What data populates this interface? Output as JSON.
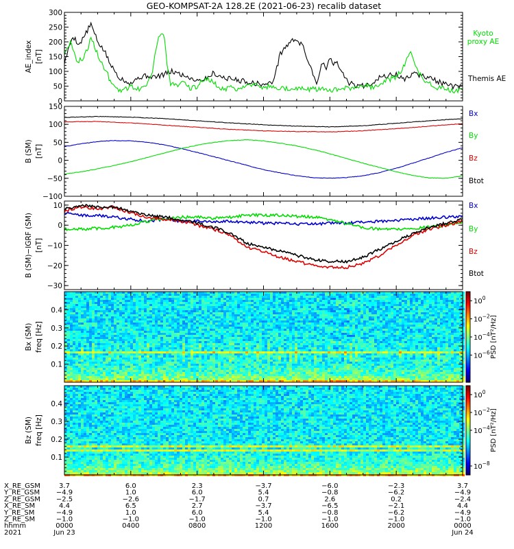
{
  "title": "GEO-KOMPSAT-2A 128.2E (2021-06-23) recalib dataset",
  "colors": {
    "black": "#000000",
    "blue": "#0000cc",
    "green": "#00dd00",
    "red": "#dd0000"
  },
  "chart_data": [
    {
      "type": "line",
      "id": "ae",
      "ylabel": "AE_index",
      "yunit": "[nT]",
      "ylim": [
        0,
        300
      ],
      "yticks": [
        0,
        50,
        100,
        150,
        200,
        250,
        300
      ],
      "ytick_labels": [
        "0",
        "50",
        "100",
        "150",
        "200",
        "250",
        "300"
      ],
      "x_hours": [
        0,
        24
      ],
      "series": [
        {
          "name": "Themis AE",
          "color": "#000000",
          "x": [
            0,
            0.5,
            0.9,
            1.3,
            1.6,
            2.0,
            2.4,
            2.8,
            3.3,
            3.6,
            4.0,
            4.5,
            5.0,
            5.5,
            6.0,
            6.5,
            7.0,
            7.5,
            8.0,
            8.5,
            9.0,
            9.5,
            10.0,
            10.5,
            11.0,
            11.5,
            12.0,
            12.5,
            12.8,
            13.0,
            13.3,
            13.6,
            14.0,
            14.4,
            14.8,
            15.2,
            15.6,
            15.8,
            16.0,
            16.2,
            16.4,
            16.6,
            16.8,
            17.0,
            17.2,
            17.4,
            17.6,
            17.8,
            18.0,
            18.5,
            19.0,
            19.5,
            20.0,
            20.5,
            21.0,
            21.5,
            22.0,
            22.5,
            23.0,
            23.5,
            24.0
          ],
          "y": [
            130,
            220,
            190,
            230,
            260,
            200,
            170,
            120,
            80,
            70,
            60,
            80,
            85,
            80,
            90,
            100,
            90,
            80,
            70,
            75,
            95,
            80,
            75,
            70,
            65,
            60,
            55,
            60,
            110,
            160,
            180,
            200,
            210,
            180,
            120,
            60,
            140,
            100,
            150,
            120,
            130,
            110,
            90,
            70,
            60,
            55,
            50,
            55,
            50,
            60,
            80,
            85,
            90,
            70,
            95,
            85,
            80,
            65,
            55,
            48,
            45
          ]
        },
        {
          "name": "Kyoto proxy AE",
          "color": "#00dd00",
          "x": [
            0,
            0.4,
            0.8,
            1.2,
            1.6,
            2.0,
            2.3,
            2.6,
            2.9,
            3.2,
            3.5,
            4.0,
            4.5,
            5.0,
            5.3,
            5.5,
            5.7,
            6.0,
            6.2,
            6.4,
            6.8,
            7.2,
            7.6,
            8.0,
            8.5,
            9.0,
            9.5,
            10.0,
            10.5,
            11.0,
            11.5,
            12.0,
            12.5,
            13.0,
            13.5,
            14.0,
            14.5,
            15.0,
            15.5,
            16.0,
            16.5,
            17.0,
            17.5,
            18.0,
            18.5,
            19.0,
            19.5,
            20.0,
            20.5,
            20.8,
            21.1,
            21.4,
            21.7,
            22.0,
            22.5,
            23.0,
            23.5,
            24.0
          ],
          "y": [
            160,
            200,
            130,
            150,
            210,
            160,
            120,
            90,
            50,
            40,
            35,
            50,
            40,
            60,
            100,
            170,
            220,
            230,
            110,
            60,
            50,
            60,
            40,
            50,
            80,
            60,
            40,
            45,
            40,
            60,
            55,
            45,
            50,
            45,
            40,
            45,
            38,
            40,
            42,
            38,
            40,
            42,
            40,
            55,
            45,
            60,
            70,
            80,
            120,
            170,
            130,
            90,
            70,
            60,
            45,
            40,
            35,
            40
          ]
        }
      ]
    },
    {
      "type": "line",
      "id": "bsm",
      "ylabel": "B (SM)",
      "yunit": "[nT]",
      "ylim": [
        -100,
        150
      ],
      "yticks": [
        -100,
        -50,
        0,
        50,
        100,
        150
      ],
      "ytick_labels": [
        "−100",
        "−50",
        "0",
        "50",
        "100",
        "150"
      ],
      "series": [
        {
          "name": "Bx",
          "color": "#0000cc",
          "x": [
            0,
            1,
            2,
            3,
            4,
            5,
            6,
            7,
            8,
            9,
            10,
            11,
            12,
            13,
            14,
            15,
            16,
            17,
            18,
            19,
            20,
            21,
            22,
            23,
            24
          ],
          "y": [
            38,
            46,
            52,
            55,
            54,
            50,
            43,
            33,
            22,
            10,
            -2,
            -14,
            -26,
            -35,
            -43,
            -48,
            -50,
            -48,
            -43,
            -34,
            -22,
            -8,
            7,
            22,
            35
          ]
        },
        {
          "name": "By",
          "color": "#00dd00",
          "x": [
            0,
            1,
            2,
            3,
            4,
            5,
            6,
            7,
            8,
            9,
            10,
            11,
            12,
            13,
            14,
            15,
            16,
            17,
            18,
            19,
            20,
            21,
            22,
            23,
            24
          ],
          "y": [
            -38,
            -32,
            -24,
            -14,
            -4,
            8,
            20,
            32,
            42,
            50,
            55,
            57,
            54,
            48,
            40,
            30,
            18,
            5,
            -8,
            -20,
            -32,
            -42,
            -49,
            -50,
            -43
          ]
        },
        {
          "name": "Bz",
          "color": "#dd0000",
          "x": [
            0,
            2,
            4,
            6,
            8,
            10,
            12,
            14,
            16,
            18,
            20,
            22,
            24
          ],
          "y": [
            107,
            108,
            104,
            98,
            92,
            86,
            82,
            80,
            79,
            82,
            88,
            95,
            102
          ]
        },
        {
          "name": "Btot",
          "color": "#000000",
          "x": [
            0,
            2,
            4,
            6,
            8,
            10,
            12,
            14,
            16,
            18,
            20,
            22,
            24
          ],
          "y": [
            119,
            122,
            120,
            116,
            110,
            104,
            99,
            95,
            93,
            96,
            103,
            110,
            116
          ]
        }
      ]
    },
    {
      "type": "line",
      "id": "bigrf",
      "ylabel": "B (SM)−IGRF (SM)",
      "yunit": "[nT]",
      "ylim": [
        -32,
        12
      ],
      "yticks": [
        -30,
        -20,
        -10,
        0,
        10
      ],
      "ytick_labels": [
        "−30",
        "−20",
        "−10",
        "0",
        "10"
      ],
      "series": [
        {
          "name": "Bx",
          "color": "#0000cc",
          "x": [
            0,
            1,
            2,
            3,
            4,
            5,
            6,
            7,
            8,
            9,
            10,
            11,
            12,
            13,
            14,
            15,
            16,
            17,
            18,
            19,
            20,
            21,
            22,
            23,
            24
          ],
          "y": [
            6,
            5,
            5,
            4,
            3,
            2,
            3,
            2,
            2,
            1.5,
            2,
            1.5,
            1,
            1,
            0.5,
            0.5,
            1,
            1,
            1.5,
            2,
            2.5,
            3,
            3.5,
            4,
            4.5
          ]
        },
        {
          "name": "By",
          "color": "#00dd00",
          "x": [
            0,
            1,
            2,
            3,
            4,
            5,
            6,
            7,
            8,
            9,
            10,
            11,
            12,
            13,
            14,
            15,
            16,
            17,
            18,
            19,
            20,
            21,
            22,
            23,
            24
          ],
          "y": [
            -2,
            -2,
            -1.5,
            -1,
            0,
            2,
            3,
            4,
            4,
            3.5,
            4,
            5,
            5,
            5,
            4.5,
            4,
            3,
            1,
            -1,
            -2,
            -2,
            -1.5,
            -1,
            0,
            1.5
          ]
        },
        {
          "name": "Bz",
          "color": "#dd0000",
          "x": [
            0,
            1,
            2,
            3,
            4,
            5,
            6,
            7,
            8,
            9,
            10,
            11,
            12,
            13,
            14,
            15,
            16,
            17,
            18,
            19,
            20,
            21,
            22,
            23,
            24
          ],
          "y": [
            7,
            9,
            8,
            9,
            6,
            4,
            3,
            2,
            0,
            -2,
            -5,
            -11,
            -13,
            -16,
            -18,
            -20,
            -21,
            -21,
            -19,
            -15,
            -10,
            -5,
            -2,
            0,
            2
          ]
        },
        {
          "name": "Btot",
          "color": "#000000",
          "x": [
            0,
            1,
            2,
            3,
            4,
            5,
            6,
            7,
            8,
            9,
            10,
            11,
            12,
            13,
            14,
            15,
            16,
            17,
            18,
            19,
            20,
            21,
            22,
            23,
            24
          ],
          "y": [
            8,
            10,
            9,
            9,
            7,
            5,
            4,
            3,
            1,
            -1,
            -4,
            -9,
            -11,
            -13,
            -15,
            -17,
            -18,
            -18,
            -16,
            -12,
            -8,
            -4,
            -1,
            1,
            3
          ]
        }
      ]
    },
    {
      "type": "heatmap",
      "id": "spec_bx",
      "ylabel": "Bx (SM)",
      "yunit": "freq [Hz]",
      "ylim": [
        0,
        0.5
      ],
      "yticks": [
        0.1,
        0.2,
        0.3,
        0.4
      ],
      "ytick_labels": [
        "0.1",
        "0.2",
        "0.3",
        "0.4"
      ],
      "colorbar_label": "PSD [nT²/Hz]",
      "colorbar_log_range": [
        -9,
        1
      ],
      "colorbar_ticks": [
        {
          "log": 0,
          "label": "10",
          "exp": "0"
        },
        {
          "log": -2,
          "label": "10",
          "exp": "−2"
        },
        {
          "log": -4,
          "label": "10",
          "exp": "−4"
        },
        {
          "log": -6,
          "label": "10",
          "exp": "−6"
        }
      ],
      "features": [
        {
          "freq_hz": 0.167,
          "note": "line"
        },
        {
          "freq_hz": 0.175,
          "note": "line"
        }
      ]
    },
    {
      "type": "heatmap",
      "id": "spec_bz",
      "ylabel": "Bz (SM)",
      "yunit": "freq [Hz]",
      "ylim": [
        0,
        0.5
      ],
      "yticks": [
        0.1,
        0.2,
        0.3,
        0.4
      ],
      "ytick_labels": [
        "0.1",
        "0.2",
        "0.3",
        "0.4"
      ],
      "colorbar_label": "PSD [nT²/Hz]",
      "colorbar_log_range": [
        -9,
        1
      ],
      "colorbar_ticks": [
        {
          "log": 0,
          "label": "10",
          "exp": "0"
        },
        {
          "log": -2,
          "label": "10",
          "exp": "−2"
        },
        {
          "log": -4,
          "label": "10",
          "exp": "−4"
        },
        {
          "log": -8,
          "label": "10",
          "exp": "−8"
        }
      ],
      "features": [
        {
          "freq_hz": 0.142,
          "note": "line"
        },
        {
          "freq_hz": 0.167,
          "note": "line"
        }
      ]
    }
  ],
  "x_axis": {
    "hours": [
      0,
      4,
      8,
      12,
      16,
      20,
      24
    ],
    "rows": [
      {
        "label": "X_RE_GSM",
        "values": [
          "3.7",
          "6.0",
          "2.3",
          "−3.7",
          "−6.0",
          "−2.3",
          "3.7"
        ]
      },
      {
        "label": "Y_RE_GSM",
        "values": [
          "−4.9",
          "1.0",
          "6.0",
          "5.4",
          "−0.8",
          "−6.2",
          "−4.9"
        ]
      },
      {
        "label": "Z_RE_GSM",
        "values": [
          "−2.5",
          "−2.6",
          "−1.7",
          "0.7",
          "2.6",
          "0.2",
          "−2.4"
        ]
      },
      {
        "label": "X_RE_SM",
        "values": [
          "4.4",
          "6.5",
          "2.7",
          "−3.7",
          "−6.5",
          "−2.1",
          "4.4"
        ]
      },
      {
        "label": "Y_RE_SM",
        "values": [
          "−4.9",
          "1.0",
          "6.0",
          "5.4",
          "−0.8",
          "−6.2",
          "−4.9"
        ]
      },
      {
        "label": "Z_RE_SM",
        "values": [
          "−1.0",
          "−1.0",
          "−1.0",
          "−1.0",
          "−1.0",
          "−1.0",
          "−1.0"
        ]
      },
      {
        "label": "hhmm",
        "values": [
          "0000",
          "0400",
          "0800",
          "1200",
          "1600",
          "2000",
          "0000"
        ]
      },
      {
        "label": "2021",
        "values": [
          "Jun 23",
          "",
          "",
          "",
          "",
          "",
          "Jun 24"
        ]
      }
    ]
  }
}
